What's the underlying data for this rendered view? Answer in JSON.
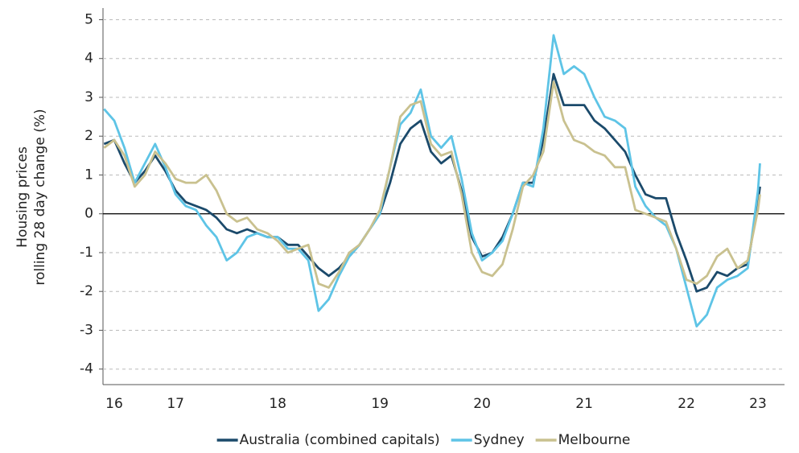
{
  "chart_data": {
    "type": "line",
    "ylabel": [
      "Housing prices",
      "rolling 28 day change (%)"
    ],
    "x": [
      2016.8,
      2016.9,
      2017.0,
      2017.1,
      2017.2,
      2017.3,
      2017.4,
      2017.5,
      2017.6,
      2017.7,
      2017.8,
      2017.9,
      2018.0,
      2018.1,
      2018.2,
      2018.3,
      2018.4,
      2018.5,
      2018.6,
      2018.7,
      2018.8,
      2018.9,
      2019.0,
      2019.1,
      2019.2,
      2019.3,
      2019.4,
      2019.5,
      2019.6,
      2019.7,
      2019.8,
      2019.9,
      2020.0,
      2020.1,
      2020.2,
      2020.3,
      2020.4,
      2020.5,
      2020.6,
      2020.7,
      2020.8,
      2020.9,
      2021.0,
      2021.1,
      2021.2,
      2021.3,
      2021.4,
      2021.5,
      2021.6,
      2021.7,
      2021.8,
      2021.9,
      2022.0,
      2022.1,
      2022.2,
      2022.3,
      2022.4,
      2022.5,
      2022.6,
      2022.7,
      2022.8,
      2022.9,
      2023.0,
      2023.1,
      2023.2,
      2023.22
    ],
    "series": [
      {
        "name": "Australia (combined capitals)",
        "color": "#1b4a6b",
        "values": [
          1.8,
          1.9,
          1.3,
          0.8,
          1.1,
          1.5,
          1.1,
          0.6,
          0.3,
          0.2,
          0.1,
          -0.1,
          -0.4,
          -0.5,
          -0.4,
          -0.5,
          -0.6,
          -0.6,
          -0.8,
          -0.8,
          -1.1,
          -1.4,
          -1.6,
          -1.4,
          -1.1,
          -0.8,
          -0.4,
          0.0,
          0.8,
          1.8,
          2.2,
          2.4,
          1.6,
          1.3,
          1.5,
          0.6,
          -0.6,
          -1.1,
          -1.0,
          -0.6,
          0.0,
          0.8,
          0.8,
          1.9,
          3.6,
          2.8,
          2.8,
          2.8,
          2.4,
          2.2,
          1.9,
          1.6,
          1.0,
          0.5,
          0.4,
          0.4,
          -0.5,
          -1.2,
          -2.0,
          -1.9,
          -1.5,
          -1.6,
          -1.4,
          -1.3,
          0.3,
          0.7
        ]
      },
      {
        "name": "Sydney",
        "color": "#5ec4e6",
        "values": [
          2.7,
          2.4,
          1.7,
          0.8,
          1.3,
          1.8,
          1.2,
          0.5,
          0.2,
          0.1,
          -0.3,
          -0.6,
          -1.2,
          -1.0,
          -0.6,
          -0.5,
          -0.6,
          -0.6,
          -0.9,
          -0.9,
          -1.2,
          -2.5,
          -2.2,
          -1.6,
          -1.1,
          -0.8,
          -0.4,
          0.0,
          1.2,
          2.3,
          2.6,
          3.2,
          2.0,
          1.7,
          2.0,
          0.9,
          -0.5,
          -1.2,
          -1.0,
          -0.7,
          0.0,
          0.8,
          0.7,
          2.2,
          4.6,
          3.6,
          3.8,
          3.6,
          3.0,
          2.5,
          2.4,
          2.2,
          0.7,
          0.2,
          -0.1,
          -0.3,
          -0.9,
          -1.9,
          -2.9,
          -2.6,
          -1.9,
          -1.7,
          -1.6,
          -1.4,
          0.6,
          1.3
        ]
      },
      {
        "name": "Melbourne",
        "color": "#c9c18f",
        "values": [
          1.7,
          1.9,
          1.5,
          0.7,
          1.0,
          1.6,
          1.3,
          0.9,
          0.8,
          0.8,
          1.0,
          0.6,
          0.0,
          -0.2,
          -0.1,
          -0.4,
          -0.5,
          -0.7,
          -1.0,
          -0.9,
          -0.8,
          -1.8,
          -1.9,
          -1.5,
          -1.0,
          -0.8,
          -0.4,
          0.1,
          1.2,
          2.5,
          2.8,
          2.9,
          1.8,
          1.5,
          1.6,
          0.5,
          -1.0,
          -1.5,
          -1.6,
          -1.3,
          -0.4,
          0.7,
          1.0,
          1.6,
          3.4,
          2.4,
          1.9,
          1.8,
          1.6,
          1.5,
          1.2,
          1.2,
          0.1,
          0.0,
          -0.1,
          -0.2,
          -0.9,
          -1.7,
          -1.8,
          -1.6,
          -1.1,
          -0.9,
          -1.4,
          -1.2,
          0.1,
          0.5
        ]
      }
    ],
    "xlim": [
      2016.79,
      2023.46
    ],
    "xticks": [
      {
        "value": 2016.9,
        "label": "16"
      },
      {
        "value": 2017.5,
        "label": "17"
      },
      {
        "value": 2018.5,
        "label": "18"
      },
      {
        "value": 2019.5,
        "label": "19"
      },
      {
        "value": 2020.5,
        "label": "20"
      },
      {
        "value": 2021.5,
        "label": "21"
      },
      {
        "value": 2022.5,
        "label": "22"
      },
      {
        "value": 2023.2,
        "label": "23"
      }
    ],
    "ylim": [
      -4.4,
      5.3
    ],
    "yticks": [
      -4,
      -3,
      -2,
      -1,
      0,
      1,
      2,
      3,
      4,
      5
    ],
    "grid": true,
    "legend": "bottom"
  }
}
